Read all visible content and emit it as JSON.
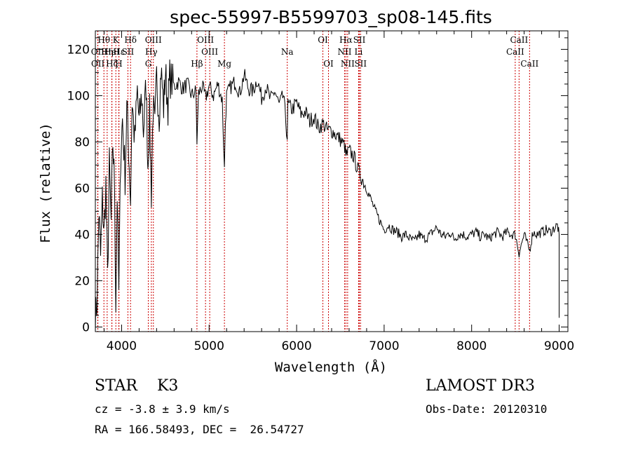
{
  "chart_data": {
    "type": "line",
    "title": "spec-55997-B5599703_sp08-145.fits",
    "xlabel": "Wavelength (Å)",
    "ylabel": "Flux (relative)",
    "xlim": [
      3700,
      9100
    ],
    "ylim": [
      -2,
      128
    ],
    "x_ticks": [
      4000,
      5000,
      6000,
      7000,
      8000,
      9000
    ],
    "y_ticks": [
      0,
      20,
      40,
      60,
      80,
      100,
      120
    ],
    "series": [
      {
        "name": "spectrum",
        "x": [
          3700,
          3720,
          3740,
          3760,
          3780,
          3800,
          3820,
          3840,
          3860,
          3880,
          3900,
          3920,
          3934,
          3950,
          3968,
          3990,
          4010,
          4040,
          4060,
          4080,
          4102,
          4120,
          4150,
          4180,
          4200,
          4230,
          4250,
          4280,
          4300,
          4320,
          4340,
          4360,
          4380,
          4400,
          4430,
          4450,
          4480,
          4500,
          4530,
          4550,
          4600,
          4650,
          4700,
          4750,
          4800,
          4850,
          4861,
          4880,
          4920,
          4960,
          5000,
          5050,
          5100,
          5150,
          5175,
          5185,
          5200,
          5250,
          5300,
          5350,
          5400,
          5450,
          5500,
          5550,
          5600,
          5650,
          5700,
          5750,
          5800,
          5850,
          5893,
          5900,
          5950,
          6000,
          6050,
          6100,
          6150,
          6200,
          6250,
          6300,
          6350,
          6400,
          6450,
          6500,
          6550,
          6563,
          6600,
          6650,
          6700,
          6750,
          6800,
          6850,
          6900,
          6950,
          7000,
          7050,
          7100,
          7150,
          7200,
          7250,
          7300,
          7350,
          7400,
          7450,
          7500,
          7550,
          7600,
          7650,
          7700,
          7750,
          7800,
          7850,
          7900,
          7950,
          8000,
          8050,
          8100,
          8150,
          8200,
          8250,
          8300,
          8350,
          8400,
          8450,
          8498,
          8542,
          8600,
          8662,
          8700,
          8750,
          8800,
          8850,
          8900,
          8950,
          8980,
          9000
        ],
        "y": [
          2,
          12,
          50,
          30,
          55,
          40,
          62,
          20,
          70,
          45,
          80,
          60,
          10,
          58,
          15,
          75,
          90,
          65,
          95,
          78,
          55,
          98,
          80,
          102,
          88,
          100,
          85,
          105,
          70,
          92,
          58,
          96,
          85,
          108,
          92,
          112,
          95,
          110,
          96,
          108,
          104,
          106,
          103,
          105,
          100,
          102,
          80,
          101,
          104,
          99,
          104,
          100,
          105,
          98,
          68,
          88,
          100,
          104,
          106,
          101,
          109,
          103,
          102,
          107,
          99,
          104,
          98,
          102,
          96,
          100,
          82,
          96,
          94,
          97,
          92,
          93,
          89,
          91,
          86,
          88,
          85,
          85,
          83,
          81,
          78,
          74,
          76,
          74,
          68,
          64,
          60,
          55,
          50,
          46,
          42,
          44,
          42,
          41,
          39,
          40,
          38,
          37,
          40,
          38,
          39,
          41,
          43,
          40,
          39,
          41,
          38,
          40,
          40,
          39,
          40,
          41,
          39,
          40,
          38,
          40,
          41,
          39,
          41,
          40,
          40,
          32,
          40,
          33,
          41,
          40,
          41,
          42,
          41,
          43,
          44,
          40
        ]
      }
    ],
    "spectral_lines": [
      {
        "label": "Hθ",
        "wavelength": 3798,
        "row": 0
      },
      {
        "label": "K",
        "wavelength": 3934,
        "row": 0
      },
      {
        "label": "Hδ",
        "wavelength": 4102,
        "row": 0
      },
      {
        "label": "OIII",
        "wavelength": 4363,
        "row": 0
      },
      {
        "label": "OIII",
        "wavelength": 4959,
        "row": 0
      },
      {
        "label": "OI",
        "wavelength": 6300,
        "row": 0
      },
      {
        "label": "Hα",
        "wavelength": 6563,
        "row": 0
      },
      {
        "label": "SII",
        "wavelength": 6717,
        "row": 0
      },
      {
        "label": "CaII",
        "wavelength": 8542,
        "row": 0
      },
      {
        "label": "OII",
        "wavelength": 3727,
        "row": 1
      },
      {
        "label": "Hη",
        "wavelength": 3835,
        "row": 1
      },
      {
        "label": "HeI",
        "wavelength": 3889,
        "row": 1
      },
      {
        "label": "SII",
        "wavelength": 4072,
        "row": 1
      },
      {
        "label": "Hγ",
        "wavelength": 4340,
        "row": 1
      },
      {
        "label": "OIII",
        "wavelength": 5007,
        "row": 1
      },
      {
        "label": "Na",
        "wavelength": 5893,
        "row": 1
      },
      {
        "label": "NII",
        "wavelength": 6548,
        "row": 1
      },
      {
        "label": "Li",
        "wavelength": 6708,
        "row": 1
      },
      {
        "label": "CaII",
        "wavelength": 8498,
        "row": 1
      },
      {
        "label": "Hε",
        "wavelength": 3970,
        "row": 1
      },
      {
        "label": "OII",
        "wavelength": 3729,
        "row": 2
      },
      {
        "label": "Hζ",
        "wavelength": 3889,
        "row": 2
      },
      {
        "label": "H",
        "wavelength": 3968,
        "row": 2
      },
      {
        "label": "G",
        "wavelength": 4305,
        "row": 2
      },
      {
        "label": "Hβ",
        "wavelength": 4861,
        "row": 2
      },
      {
        "label": "Mg",
        "wavelength": 5175,
        "row": 2
      },
      {
        "label": "OI",
        "wavelength": 6364,
        "row": 2
      },
      {
        "label": "NII",
        "wavelength": 6583,
        "row": 2
      },
      {
        "label": "SII",
        "wavelength": 6731,
        "row": 2
      },
      {
        "label": "CaII",
        "wavelength": 8662,
        "row": 2
      }
    ],
    "grid": false,
    "legend": "none"
  },
  "info": {
    "class_line": "STAR    K3",
    "cz_line": "cz = -3.8 ± 3.9 km/s",
    "radec_line": "RA = 166.58493, DEC =  26.54727",
    "survey": "LAMOST DR3",
    "obs_date": "Obs-Date: 20120310"
  },
  "colors": {
    "spectrum": "#000000",
    "line_markers": "#cc0000"
  }
}
